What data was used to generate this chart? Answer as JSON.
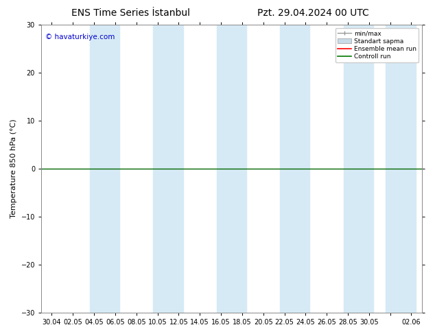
{
  "title_left": "ENS Time Series İstanbul",
  "title_right": "Pzt. 29.04.2024 00 UTC",
  "ylabel": "Temperature 850 hPa (°C)",
  "ylim": [
    -30,
    30
  ],
  "yticks": [
    -30,
    -20,
    -10,
    0,
    10,
    20,
    30
  ],
  "xtick_labels": [
    "30.04",
    "02.05",
    "04.05",
    "06.05",
    "08.05",
    "10.05",
    "12.05",
    "14.05",
    "16.05",
    "18.05",
    "20.05",
    "22.05",
    "24.05",
    "26.05",
    "28.05",
    "30.05",
    "",
    "02.06"
  ],
  "watermark": "© havaturkiye.com",
  "watermark_color": "#0000cc",
  "bg_color": "#ffffff",
  "plot_bg_color": "#ffffff",
  "band_color": "#d6eaf5",
  "band_positions_idx": [
    2,
    5,
    8,
    11,
    14,
    17
  ],
  "legend_labels": [
    "min/max",
    "Standart sapma",
    "Ensemble mean run",
    "Controll run"
  ],
  "legend_colors": [
    "#999999",
    "#c8dce8",
    "#ff0000",
    "#007700"
  ],
  "zero_line_color": "#006600",
  "border_color": "#888888",
  "title_fontsize": 10,
  "tick_fontsize": 7,
  "ylabel_fontsize": 8
}
